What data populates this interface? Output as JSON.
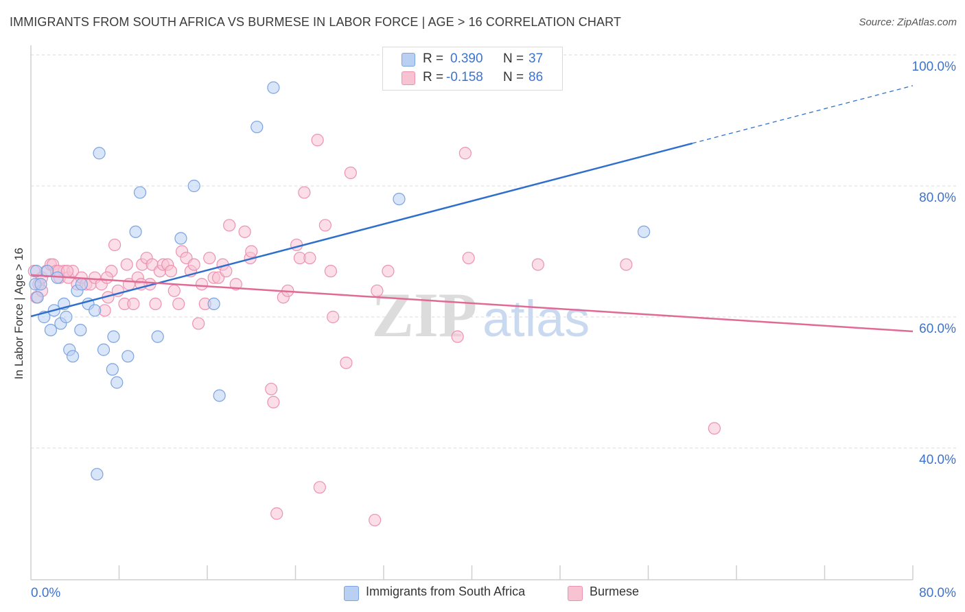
{
  "title": "IMMIGRANTS FROM SOUTH AFRICA VS BURMESE IN LABOR FORCE | AGE > 16 CORRELATION CHART",
  "source": "Source: ZipAtlas.com",
  "watermark": {
    "part1": "ZIP",
    "part2": "atlas"
  },
  "colors": {
    "blue_fill": "#b9d0f2",
    "blue_stroke": "#7aa3e0",
    "blue_line": "#2f6fcc",
    "pink_fill": "#f7c3d3",
    "pink_stroke": "#eb92b1",
    "pink_line": "#e06a95",
    "axis_label": "#3d73cf",
    "grid": "#d8d8d8"
  },
  "stats": [
    {
      "r_label": "R =",
      "r_value": "0.390",
      "n_label": "N =",
      "n_value": "37"
    },
    {
      "r_label": "R =",
      "r_value": "-0.158",
      "n_label": "N =",
      "n_value": "86"
    }
  ],
  "legend": [
    "Immigrants from South Africa",
    "Burmese"
  ],
  "chart_data": {
    "type": "scatter",
    "title": "IMMIGRANTS FROM SOUTH AFRICA VS BURMESE IN LABOR FORCE | AGE > 16 CORRELATION CHART",
    "xlabel": "",
    "ylabel": "In Labor Force | Age > 16",
    "xlim": [
      0,
      80
    ],
    "ylim": [
      22,
      102
    ],
    "x_tick_labels": [
      "0.0%",
      "80.0%"
    ],
    "y_ticks": [
      40,
      60,
      80,
      100
    ],
    "y_tick_labels": [
      "40.0%",
      "60.0%",
      "80.0%",
      "100.0%"
    ],
    "grid": true,
    "legend_position": "bottom",
    "series": [
      {
        "name": "Immigrants from South Africa",
        "points": [
          [
            0.4,
            65
          ],
          [
            0.5,
            67
          ],
          [
            0.6,
            63
          ],
          [
            0.9,
            65
          ],
          [
            1.2,
            60
          ],
          [
            1.5,
            67
          ],
          [
            1.8,
            58
          ],
          [
            2.1,
            61
          ],
          [
            2.4,
            66
          ],
          [
            2.7,
            59
          ],
          [
            3.0,
            62
          ],
          [
            3.2,
            60
          ],
          [
            3.5,
            55
          ],
          [
            3.8,
            54
          ],
          [
            4.2,
            64
          ],
          [
            4.5,
            58
          ],
          [
            4.6,
            65
          ],
          [
            5.2,
            62
          ],
          [
            5.8,
            61
          ],
          [
            6.2,
            85
          ],
          [
            6.6,
            55
          ],
          [
            7.4,
            52
          ],
          [
            7.5,
            57
          ],
          [
            7.8,
            50
          ],
          [
            8.8,
            54
          ],
          [
            9.5,
            73
          ],
          [
            9.9,
            79
          ],
          [
            11.5,
            57
          ],
          [
            13.6,
            72
          ],
          [
            14.8,
            80
          ],
          [
            16.6,
            62
          ],
          [
            17.1,
            48
          ],
          [
            20.5,
            89
          ],
          [
            22.0,
            95
          ],
          [
            33.4,
            78
          ],
          [
            55.6,
            73
          ],
          [
            6.0,
            36
          ]
        ]
      },
      {
        "name": "Burmese",
        "points": [
          [
            0.3,
            67
          ],
          [
            0.5,
            63
          ],
          [
            0.7,
            65
          ],
          [
            1.0,
            66
          ],
          [
            1.4,
            67
          ],
          [
            1.8,
            68
          ],
          [
            2.0,
            68
          ],
          [
            2.3,
            67
          ],
          [
            2.6,
            66
          ],
          [
            3.0,
            67
          ],
          [
            3.4,
            66
          ],
          [
            3.8,
            67
          ],
          [
            4.2,
            65
          ],
          [
            4.6,
            66
          ],
          [
            5.0,
            65
          ],
          [
            5.4,
            65
          ],
          [
            5.8,
            66
          ],
          [
            6.4,
            65
          ],
          [
            6.7,
            61
          ],
          [
            7.0,
            63
          ],
          [
            7.3,
            67
          ],
          [
            7.6,
            71
          ],
          [
            7.9,
            64
          ],
          [
            8.5,
            62
          ],
          [
            8.7,
            68
          ],
          [
            8.9,
            65
          ],
          [
            9.3,
            62
          ],
          [
            9.7,
            66
          ],
          [
            10.1,
            68
          ],
          [
            10.5,
            69
          ],
          [
            10.8,
            65
          ],
          [
            11.0,
            68
          ],
          [
            11.3,
            62
          ],
          [
            11.7,
            67
          ],
          [
            12.0,
            68
          ],
          [
            12.4,
            68
          ],
          [
            12.7,
            67
          ],
          [
            13.0,
            64
          ],
          [
            13.4,
            62
          ],
          [
            13.7,
            70
          ],
          [
            14.1,
            69
          ],
          [
            14.5,
            67
          ],
          [
            14.8,
            68
          ],
          [
            15.2,
            59
          ],
          [
            15.5,
            65
          ],
          [
            15.8,
            62
          ],
          [
            16.2,
            69
          ],
          [
            16.6,
            66
          ],
          [
            17.0,
            66
          ],
          [
            17.4,
            68
          ],
          [
            17.7,
            67
          ],
          [
            18.0,
            74
          ],
          [
            18.6,
            65
          ],
          [
            19.4,
            73
          ],
          [
            19.9,
            69
          ],
          [
            20.0,
            70
          ],
          [
            21.8,
            49
          ],
          [
            22.0,
            47
          ],
          [
            22.3,
            30
          ],
          [
            22.9,
            63
          ],
          [
            23.3,
            64
          ],
          [
            24.1,
            71
          ],
          [
            24.4,
            69
          ],
          [
            24.8,
            79
          ],
          [
            25.3,
            69
          ],
          [
            26.0,
            87
          ],
          [
            26.2,
            34
          ],
          [
            26.7,
            74
          ],
          [
            27.2,
            67
          ],
          [
            27.4,
            60
          ],
          [
            28.6,
            53
          ],
          [
            29.0,
            82
          ],
          [
            31.2,
            29
          ],
          [
            31.4,
            64
          ],
          [
            32.4,
            67
          ],
          [
            38.7,
            57
          ],
          [
            39.4,
            85
          ],
          [
            39.7,
            69
          ],
          [
            46.0,
            68
          ],
          [
            54.0,
            68
          ],
          [
            62.0,
            43
          ],
          [
            1.0,
            64
          ],
          [
            2.5,
            67
          ],
          [
            3.3,
            67
          ],
          [
            6.9,
            66
          ],
          [
            10.0,
            65
          ]
        ]
      }
    ],
    "trendlines": [
      {
        "series": "Immigrants from South Africa",
        "x": [
          0,
          80
        ],
        "y": [
          60.1,
          95.3
        ],
        "solid_to_x": 60
      },
      {
        "series": "Burmese",
        "x": [
          0,
          80
        ],
        "y": [
          66.4,
          57.8
        ]
      }
    ]
  }
}
